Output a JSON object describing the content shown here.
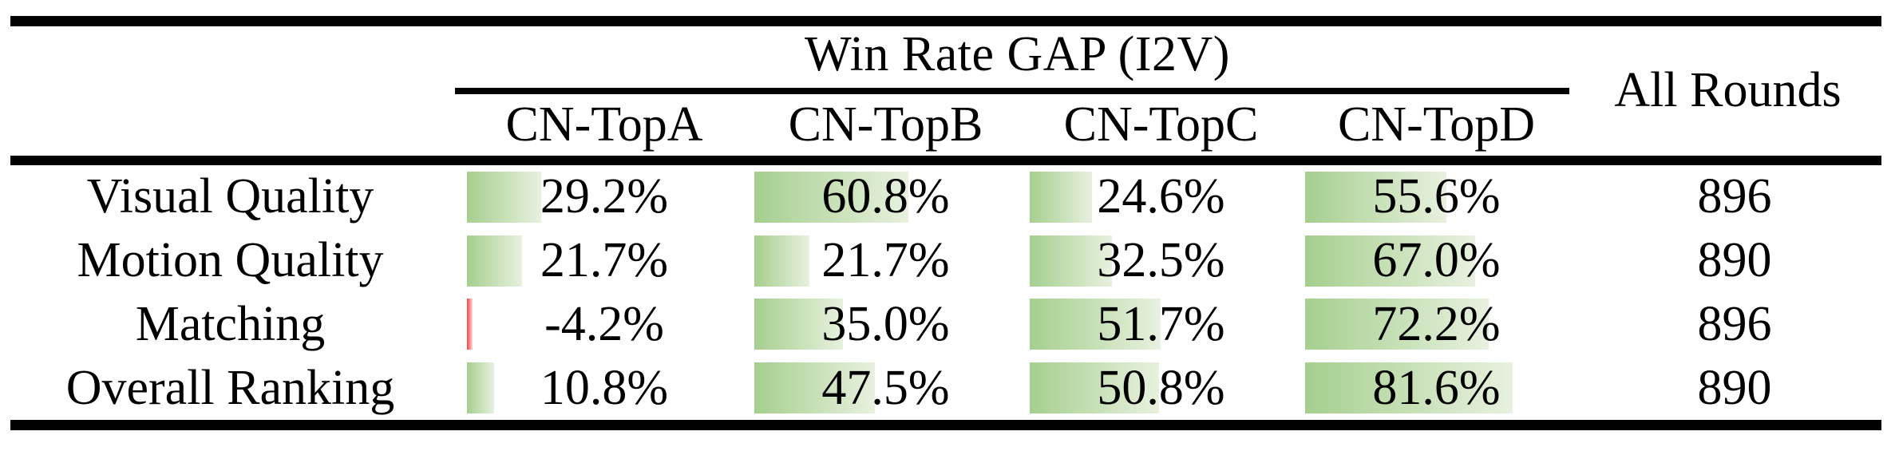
{
  "figure": {
    "group_header": "Win Rate GAP (I2V)",
    "all_rounds_label": "All Rounds",
    "columns": [
      "CN-TopA",
      "CN-TopB",
      "CN-TopC",
      "CN-TopD"
    ],
    "rows": [
      {
        "label": "Visual Quality",
        "cells": [
          {
            "text": "29.2%",
            "value": 29.2
          },
          {
            "text": "60.8%",
            "value": 60.8
          },
          {
            "text": "24.6%",
            "value": 24.6
          },
          {
            "text": "55.6%",
            "value": 55.6
          }
        ],
        "all_rounds": "896"
      },
      {
        "label": "Motion Quality",
        "cells": [
          {
            "text": "21.7%",
            "value": 21.7
          },
          {
            "text": "21.7%",
            "value": 21.7
          },
          {
            "text": "32.5%",
            "value": 32.5
          },
          {
            "text": "67.0%",
            "value": 67.0
          }
        ],
        "all_rounds": "890"
      },
      {
        "label": "Matching",
        "cells": [
          {
            "text": "-4.2%",
            "value": -4.2
          },
          {
            "text": "35.0%",
            "value": 35.0
          },
          {
            "text": "51.7%",
            "value": 51.7
          },
          {
            "text": "72.2%",
            "value": 72.2
          }
        ],
        "all_rounds": "896"
      },
      {
        "label": "Overall Ranking",
        "cells": [
          {
            "text": "10.8%",
            "value": 10.8
          },
          {
            "text": "47.5%",
            "value": 47.5
          },
          {
            "text": "50.8%",
            "value": 50.8
          },
          {
            "text": "81.6%",
            "value": 81.6
          }
        ],
        "all_rounds": "890"
      }
    ],
    "colors": {
      "positive_bar_start": "#a5cf8e",
      "positive_bar_end": "#e8f1df",
      "negative_bar_start": "#f94040",
      "negative_bar_end": "#ffd9d9",
      "rule": "#000000",
      "text": "#000000"
    }
  },
  "chart_data": {
    "type": "table",
    "title": "Win Rate GAP (I2V)",
    "columns": [
      "CN-TopA",
      "CN-TopB",
      "CN-TopC",
      "CN-TopD",
      "All Rounds"
    ],
    "row_labels": [
      "Visual Quality",
      "Motion Quality",
      "Matching",
      "Overall Ranking"
    ],
    "series": [
      {
        "name": "CN-TopA",
        "values": [
          29.2,
          21.7,
          -4.2,
          10.8
        ]
      },
      {
        "name": "CN-TopB",
        "values": [
          60.8,
          21.7,
          35.0,
          47.5
        ]
      },
      {
        "name": "CN-TopC",
        "values": [
          24.6,
          32.5,
          51.7,
          50.8
        ]
      },
      {
        "name": "CN-TopD",
        "values": [
          55.6,
          67.0,
          72.2,
          81.6
        ]
      }
    ],
    "all_rounds": [
      896,
      890,
      896,
      890
    ],
    "unit": "%",
    "notes": "in-cell gradient data bars: green for positive values, thin red sliver for negative value"
  }
}
